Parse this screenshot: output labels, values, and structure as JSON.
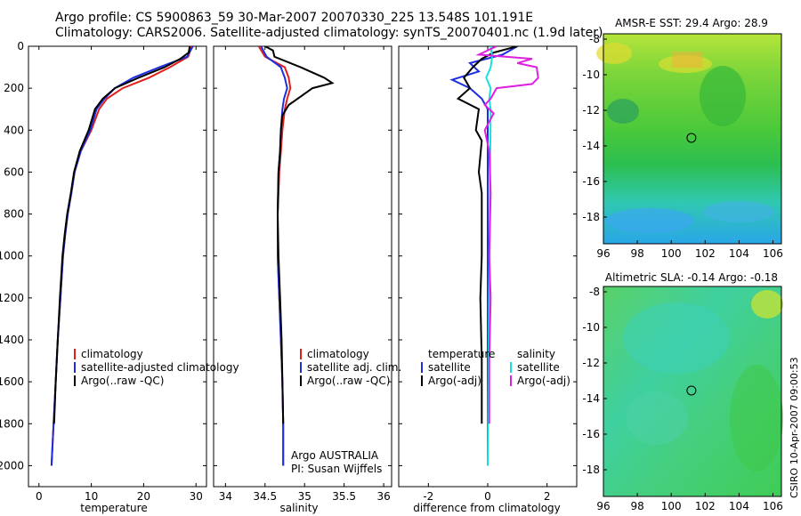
{
  "header": {
    "line1": "Argo profile: CS 5900863_59 30-Mar-2007 20070330_225 13.548S 101.191E",
    "line2": "Climatology: CARS2006. Satellite-adjusted climatology: synTS_20070401.nc (1.9d later)"
  },
  "stamp": "CSIRO 10-Apr-2007 09:00:53",
  "colors": {
    "climatology": "#e0201c",
    "satellite": "#1c2fe0",
    "argo": "#000000",
    "sat_salt": "#18e0e0",
    "argo_adj_salt": "#e020e0"
  },
  "chart_data": [
    {
      "id": "temperature",
      "type": "line",
      "xlabel": "temperature",
      "ylabel": "",
      "xlim": [
        -2,
        32
      ],
      "ylim": [
        2100,
        0
      ],
      "y_reversed": true,
      "xticks": [
        0,
        10,
        20,
        30
      ],
      "yticks": [
        0,
        200,
        400,
        600,
        800,
        1000,
        1200,
        1400,
        1600,
        1800,
        2000
      ],
      "legend": {
        "position": "bottom-right",
        "entries": [
          "climatology",
          "satellite-adjusted climatology",
          "Argo(..raw -QC)"
        ]
      },
      "series": [
        {
          "name": "climatology",
          "color": "#e0201c",
          "points": [
            [
              29.2,
              0
            ],
            [
              28.5,
              50
            ],
            [
              25,
              100
            ],
            [
              21,
              150
            ],
            [
              16,
              200
            ],
            [
              13,
              250
            ],
            [
              11.5,
              300
            ],
            [
              10,
              400
            ],
            [
              8,
              500
            ],
            [
              6.8,
              600
            ],
            [
              6.2,
              700
            ],
            [
              5.5,
              800
            ],
            [
              5,
              900
            ],
            [
              4.6,
              1000
            ],
            [
              4.1,
              1200
            ],
            [
              3.6,
              1400
            ],
            [
              3.2,
              1600
            ],
            [
              2.8,
              1800
            ],
            [
              2.4,
              2000
            ]
          ]
        },
        {
          "name": "satellite-adjusted climatology",
          "color": "#1c2fe0",
          "points": [
            [
              29.4,
              0
            ],
            [
              28.3,
              50
            ],
            [
              23,
              100
            ],
            [
              18,
              150
            ],
            [
              14.5,
              200
            ],
            [
              12.5,
              250
            ],
            [
              11,
              300
            ],
            [
              9.8,
              400
            ],
            [
              8,
              500
            ],
            [
              6.8,
              600
            ],
            [
              6.2,
              700
            ],
            [
              5.5,
              800
            ],
            [
              5,
              900
            ],
            [
              4.6,
              1000
            ],
            [
              4.1,
              1200
            ],
            [
              3.6,
              1400
            ],
            [
              3.2,
              1600
            ],
            [
              2.8,
              1800
            ],
            [
              2.4,
              2000
            ]
          ]
        },
        {
          "name": "Argo(..raw -QC)",
          "color": "#000000",
          "points": [
            [
              28.8,
              0
            ],
            [
              28.6,
              30
            ],
            [
              27,
              60
            ],
            [
              24,
              100
            ],
            [
              19,
              150
            ],
            [
              14.5,
              200
            ],
            [
              12.2,
              250
            ],
            [
              10.7,
              300
            ],
            [
              9.5,
              400
            ],
            [
              7.8,
              500
            ],
            [
              6.7,
              600
            ],
            [
              6.1,
              700
            ],
            [
              5.4,
              800
            ],
            [
              4.9,
              900
            ],
            [
              4.5,
              1000
            ],
            [
              4,
              1200
            ],
            [
              3.6,
              1400
            ],
            [
              3.2,
              1600
            ],
            [
              2.9,
              1800
            ]
          ]
        }
      ]
    },
    {
      "id": "salinity",
      "type": "line",
      "xlabel": "salinity",
      "ylabel": "",
      "xlim": [
        33.85,
        36.1
      ],
      "ylim": [
        2100,
        0
      ],
      "y_reversed": true,
      "xticks": [
        34,
        34.5,
        35,
        35.5,
        36
      ],
      "legend": {
        "position": "bottom-right",
        "entries": [
          "climatology",
          "satellite adj. clim.",
          "Argo(..raw -QC)"
        ]
      },
      "annotation": [
        "Argo AUSTRALIA",
        "PI: Susan Wijffels"
      ],
      "series": [
        {
          "name": "climatology",
          "color": "#e0201c",
          "points": [
            [
              34.42,
              0
            ],
            [
              34.5,
              50
            ],
            [
              34.75,
              100
            ],
            [
              34.8,
              150
            ],
            [
              34.82,
              200
            ],
            [
              34.78,
              250
            ],
            [
              34.75,
              300
            ],
            [
              34.72,
              400
            ],
            [
              34.7,
              500
            ],
            [
              34.68,
              600
            ],
            [
              34.66,
              800
            ],
            [
              34.66,
              1000
            ],
            [
              34.68,
              1200
            ],
            [
              34.7,
              1400
            ],
            [
              34.72,
              1600
            ],
            [
              34.73,
              1800
            ],
            [
              34.73,
              2000
            ]
          ]
        },
        {
          "name": "satellite adj. clim.",
          "color": "#1c2fe0",
          "points": [
            [
              34.45,
              0
            ],
            [
              34.52,
              50
            ],
            [
              34.7,
              100
            ],
            [
              34.75,
              150
            ],
            [
              34.78,
              200
            ],
            [
              34.74,
              250
            ],
            [
              34.72,
              300
            ],
            [
              34.7,
              400
            ],
            [
              34.69,
              500
            ],
            [
              34.67,
              600
            ],
            [
              34.66,
              800
            ],
            [
              34.66,
              1000
            ],
            [
              34.68,
              1200
            ],
            [
              34.7,
              1400
            ],
            [
              34.72,
              1600
            ],
            [
              34.73,
              1800
            ],
            [
              34.73,
              2000
            ]
          ]
        },
        {
          "name": "Argo(..raw -QC)",
          "color": "#000000",
          "points": [
            [
              34.5,
              0
            ],
            [
              34.6,
              20
            ],
            [
              34.62,
              50
            ],
            [
              34.95,
              100
            ],
            [
              35.25,
              150
            ],
            [
              35.35,
              175
            ],
            [
              35.1,
              200
            ],
            [
              34.95,
              240
            ],
            [
              34.8,
              280
            ],
            [
              34.72,
              330
            ],
            [
              34.7,
              400
            ],
            [
              34.69,
              500
            ],
            [
              34.67,
              600
            ],
            [
              34.66,
              800
            ],
            [
              34.67,
              1000
            ],
            [
              34.69,
              1200
            ],
            [
              34.71,
              1400
            ],
            [
              34.72,
              1600
            ],
            [
              34.73,
              1800
            ]
          ]
        }
      ]
    },
    {
      "id": "difference",
      "type": "line",
      "xlabel": "difference from climatology",
      "ylabel": "",
      "xlim": [
        -3.0,
        3.0
      ],
      "ylim": [
        2100,
        0
      ],
      "y_reversed": true,
      "xticks": [
        -2,
        0,
        2
      ],
      "legend": {
        "position": "bottom",
        "entries": [
          "temperature",
          "satellite",
          "Argo(-adj)",
          "salinity",
          "satellite",
          "Argo(-adj)"
        ]
      },
      "series": [
        {
          "name": "temperature satellite",
          "color": "#1c2fe0",
          "points": [
            [
              1.0,
              0
            ],
            [
              0.5,
              40
            ],
            [
              -0.6,
              80
            ],
            [
              -0.3,
              120
            ],
            [
              -1.2,
              160
            ],
            [
              -0.6,
              200
            ],
            [
              -0.2,
              250
            ],
            [
              0,
              300
            ],
            [
              0,
              2000
            ]
          ]
        },
        {
          "name": "temperature Argo(-adj)",
          "color": "#000000",
          "points": [
            [
              1.0,
              0
            ],
            [
              0.2,
              30
            ],
            [
              -0.2,
              60
            ],
            [
              -0.5,
              100
            ],
            [
              -0.8,
              150
            ],
            [
              -0.6,
              200
            ],
            [
              -1.0,
              250
            ],
            [
              -0.3,
              300
            ],
            [
              -0.4,
              400
            ],
            [
              -0.2,
              450
            ],
            [
              -0.3,
              600
            ],
            [
              -0.2,
              700
            ],
            [
              -0.2,
              1000
            ],
            [
              -0.25,
              1200
            ],
            [
              -0.2,
              1500
            ],
            [
              -0.2,
              1800
            ]
          ]
        },
        {
          "name": "salinity satellite",
          "color": "#18e0e0",
          "points": [
            [
              0.1,
              0
            ],
            [
              0.15,
              50
            ],
            [
              0.1,
              100
            ],
            [
              -0.05,
              150
            ],
            [
              0.1,
              200
            ],
            [
              0.05,
              250
            ],
            [
              0.1,
              300
            ],
            [
              0,
              2000
            ]
          ]
        },
        {
          "name": "salinity Argo(-adj)",
          "color": "#e020e0",
          "points": [
            [
              0.3,
              0
            ],
            [
              -0.3,
              40
            ],
            [
              1.5,
              60
            ],
            [
              1.0,
              80
            ],
            [
              1.65,
              100
            ],
            [
              1.7,
              150
            ],
            [
              1.5,
              180
            ],
            [
              0.3,
              200
            ],
            [
              0.1,
              250
            ],
            [
              -0.1,
              280
            ],
            [
              0.2,
              320
            ],
            [
              -0.1,
              400
            ],
            [
              0.05,
              500
            ],
            [
              0.1,
              700
            ],
            [
              0.05,
              1000
            ],
            [
              0.1,
              1200
            ],
            [
              0.05,
              1500
            ],
            [
              0.05,
              1800
            ]
          ]
        }
      ]
    },
    {
      "id": "sst_map",
      "type": "heatmap",
      "title": "AMSR-E SST: 29.4 Argo: 28.9",
      "xlim": [
        96,
        106.5
      ],
      "ylim": [
        -19.5,
        -7.7
      ],
      "xticks": [
        96,
        98,
        100,
        102,
        104,
        106
      ],
      "yticks": [
        -8,
        -10,
        -12,
        -14,
        -16,
        -18
      ],
      "marker": [
        101.191,
        -13.548
      ]
    },
    {
      "id": "sla_map",
      "type": "heatmap",
      "title": "Altimetric SLA: -0.14 Argo: -0.18",
      "xlim": [
        96,
        106.5
      ],
      "ylim": [
        -19.5,
        -7.7
      ],
      "xticks": [
        96,
        98,
        100,
        102,
        104,
        106
      ],
      "yticks": [
        -8,
        -10,
        -12,
        -14,
        -16,
        -18
      ],
      "marker": [
        101.191,
        -13.548
      ]
    }
  ]
}
